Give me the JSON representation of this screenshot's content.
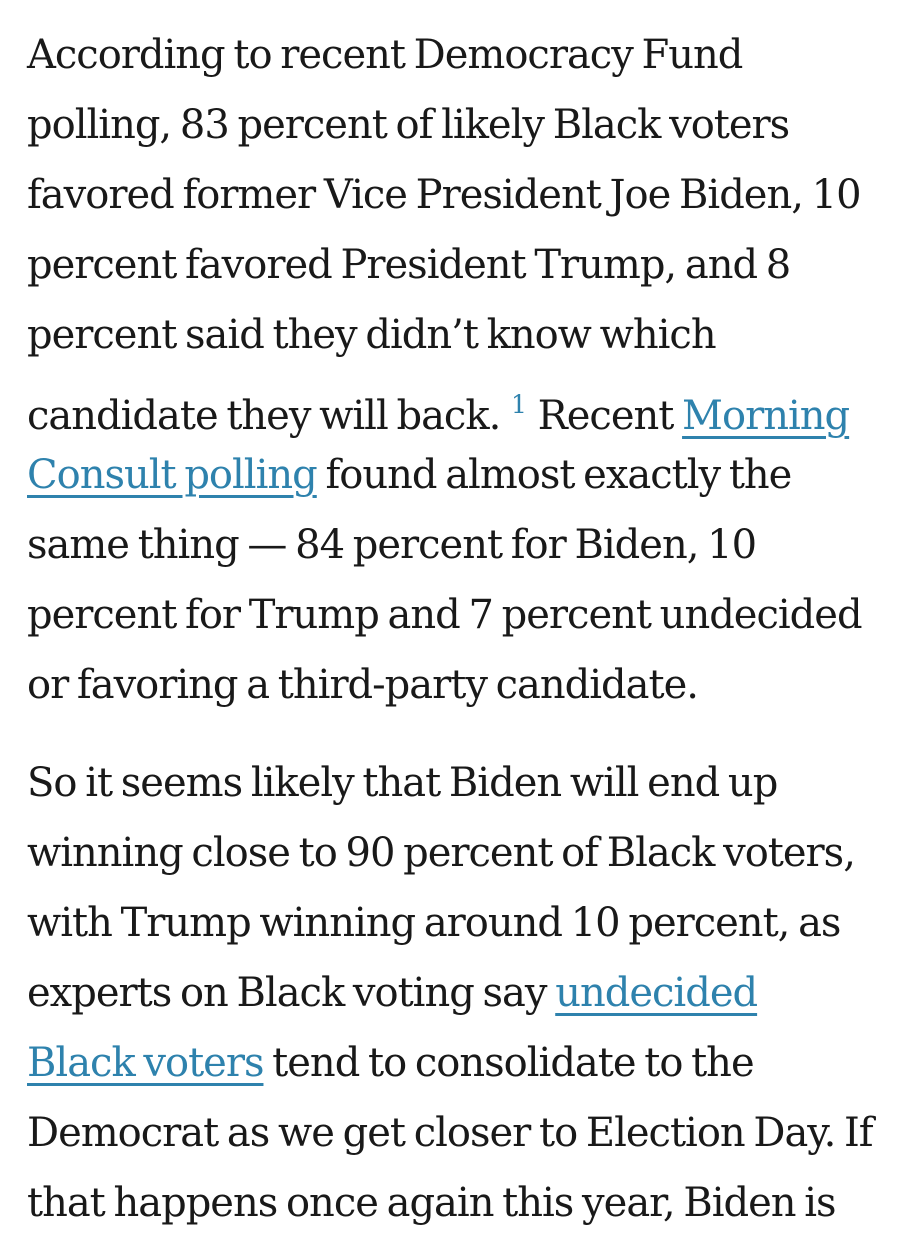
{
  "colors": {
    "background": "#ffffff",
    "body_text": "#191919",
    "link": "#2e82ad"
  },
  "article": {
    "paragraphs": [
      {
        "lines": [
          {
            "segments": [
              {
                "type": "text",
                "text": "According to recent Democracy Fund"
              }
            ]
          },
          {
            "segments": [
              {
                "type": "text",
                "text": "polling, 83 percent of likely Black voters"
              }
            ]
          },
          {
            "segments": [
              {
                "type": "text",
                "text": "favored former Vice President Joe Biden, 10"
              }
            ]
          },
          {
            "segments": [
              {
                "type": "text",
                "text": "percent favored President Trump, and 8"
              }
            ]
          },
          {
            "segments": [
              {
                "type": "text",
                "text": "percent said they didn’t know which"
              }
            ]
          },
          {
            "segments": [
              {
                "type": "text",
                "text": "candidate they will back. "
              },
              {
                "type": "footnote-link",
                "text": "1"
              },
              {
                "type": "text",
                "text": " Recent "
              },
              {
                "type": "link",
                "text": "Morning"
              }
            ]
          },
          {
            "segments": [
              {
                "type": "link",
                "text": "Consult polling"
              },
              {
                "type": "text",
                "text": " found almost exactly the"
              }
            ]
          },
          {
            "segments": [
              {
                "type": "text",
                "text": "same thing — 84 percent for Biden, 10"
              }
            ]
          },
          {
            "segments": [
              {
                "type": "text",
                "text": "percent for Trump and 7 percent undecided"
              }
            ]
          },
          {
            "segments": [
              {
                "type": "text",
                "text": "or favoring a third-party candidate."
              }
            ]
          }
        ]
      },
      {
        "lines": [
          {
            "segments": [
              {
                "type": "text",
                "text": "So it seems likely that Biden will end up"
              }
            ]
          },
          {
            "segments": [
              {
                "type": "text",
                "text": "winning close to 90 percent of Black voters,"
              }
            ]
          },
          {
            "segments": [
              {
                "type": "text",
                "text": "with Trump winning around 10 percent, as"
              }
            ]
          },
          {
            "segments": [
              {
                "type": "text",
                "text": "experts on Black voting say "
              },
              {
                "type": "link",
                "text": "undecided"
              }
            ]
          },
          {
            "segments": [
              {
                "type": "link",
                "text": "Black voters"
              },
              {
                "type": "text",
                "text": " tend to consolidate to the"
              }
            ]
          },
          {
            "segments": [
              {
                "type": "text",
                "text": "Democrat as we get closer to Election Day. If"
              }
            ]
          },
          {
            "segments": [
              {
                "type": "text",
                "text": "that happens once again this year, Biden is"
              }
            ]
          }
        ]
      }
    ]
  }
}
